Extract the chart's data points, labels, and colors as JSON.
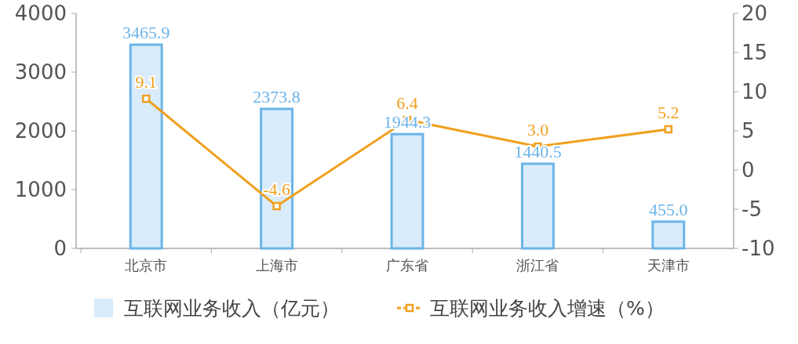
{
  "chart_data": {
    "type": "bar",
    "categories": [
      "北京市",
      "上海市",
      "广东省",
      "浙江省",
      "天津市"
    ],
    "series": [
      {
        "name": "互联网业务收入（亿元）",
        "color": "#d9ecfb",
        "values": [
          3465.9,
          2373.8,
          1944.3,
          1440.5,
          455
        ],
        "value_labels": [
          "3465.9",
          "2373.8",
          "1944.3",
          "1440.5",
          "455.0"
        ]
      },
      {
        "name": "互联网业务收入增速（%）",
        "type": "line",
        "axis": "y2",
        "color": "#f0a01e",
        "values": [
          9.1,
          -4.6,
          6.4,
          3,
          5.2
        ],
        "value_labels": [
          "9.1",
          "-4.6",
          "6.4",
          "3.0",
          "5.2"
        ]
      }
    ],
    "ylim": [
      0,
      4000
    ],
    "yticks": [
      0,
      1000,
      2000,
      3000,
      4000
    ],
    "y2lim": [
      -10,
      20
    ],
    "y2ticks": [
      -10,
      -5,
      0,
      5,
      10,
      15,
      20
    ],
    "marker": "square",
    "legend": "bottom"
  }
}
